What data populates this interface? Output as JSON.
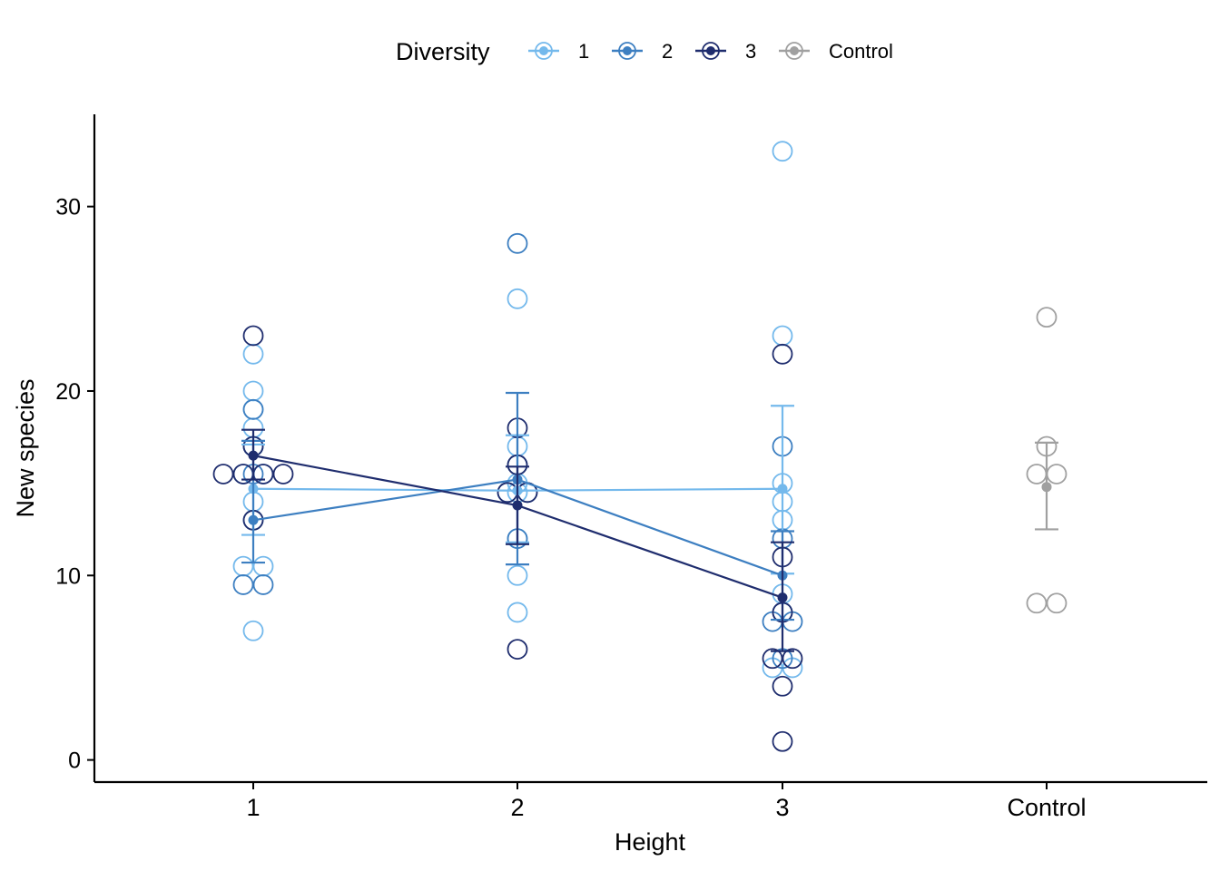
{
  "chart_data": {
    "type": "scatter",
    "xlabel": "Height",
    "ylabel": "New species",
    "categories": [
      "1",
      "2",
      "3",
      "Control"
    ],
    "ylim": [
      -1.2,
      35
    ],
    "yticks": [
      0,
      10,
      20,
      30
    ],
    "grid": false,
    "legend": {
      "title": "Diversity",
      "placement": "top",
      "entries": [
        "1",
        "2",
        "3",
        "Control"
      ]
    },
    "colors": {
      "d1": "#74b9ec",
      "d2": "#3d7fc1",
      "d3": "#1f2d6e",
      "control": "#a0a0a0"
    },
    "series": [
      {
        "name": "1",
        "color": "#74b9ec",
        "means": [
          14.7,
          14.6,
          14.7,
          null
        ],
        "err_low": [
          12.2,
          11.8,
          10.1,
          null
        ],
        "err_high": [
          17.1,
          17.6,
          19.2,
          null
        ],
        "points": [
          [
            1,
            22
          ],
          [
            1,
            20
          ],
          [
            1,
            19
          ],
          [
            1,
            18
          ],
          [
            1,
            17
          ],
          [
            1,
            15.5
          ],
          [
            1,
            15.5
          ],
          [
            1,
            14
          ],
          [
            1,
            10.5
          ],
          [
            1,
            10.5
          ],
          [
            1,
            7
          ],
          [
            2,
            25
          ],
          [
            2,
            17
          ],
          [
            2,
            15
          ],
          [
            2,
            14.5
          ],
          [
            2,
            12
          ],
          [
            2,
            10
          ],
          [
            2,
            8
          ],
          [
            3,
            33
          ],
          [
            3,
            23
          ],
          [
            3,
            15
          ],
          [
            3,
            14
          ],
          [
            3,
            13
          ],
          [
            3,
            9
          ],
          [
            3,
            5
          ],
          [
            3,
            5
          ]
        ]
      },
      {
        "name": "2",
        "color": "#3d7fc1",
        "means": [
          13.0,
          15.2,
          10.0,
          null
        ],
        "err_low": [
          10.7,
          10.6,
          7.6,
          null
        ],
        "err_high": [
          17.3,
          19.9,
          12.4,
          null
        ],
        "points": [
          [
            1,
            19
          ],
          [
            1,
            17
          ],
          [
            1,
            15.5
          ],
          [
            1,
            13
          ],
          [
            1,
            9.5
          ],
          [
            1,
            9.5
          ],
          [
            2,
            28
          ],
          [
            2,
            16
          ],
          [
            2,
            14.5
          ],
          [
            2,
            14.5
          ],
          [
            2,
            12
          ],
          [
            3,
            17
          ],
          [
            3,
            12
          ],
          [
            3,
            8
          ],
          [
            3,
            7.5
          ],
          [
            3,
            7.5
          ],
          [
            3,
            5.5
          ]
        ]
      },
      {
        "name": "3",
        "color": "#1f2d6e",
        "means": [
          16.5,
          13.8,
          8.8,
          null
        ],
        "err_low": [
          15.2,
          11.7,
          5.9,
          null
        ],
        "err_high": [
          17.9,
          15.9,
          11.8,
          null
        ],
        "points": [
          [
            1,
            23
          ],
          [
            1,
            17
          ],
          [
            1,
            15.5
          ],
          [
            1,
            15.5
          ],
          [
            1,
            15.5
          ],
          [
            1,
            15.5
          ],
          [
            1,
            13
          ],
          [
            2,
            18
          ],
          [
            2,
            16
          ],
          [
            2,
            14.5
          ],
          [
            2,
            14.5
          ],
          [
            2,
            6
          ],
          [
            3,
            22
          ],
          [
            3,
            11
          ],
          [
            3,
            8
          ],
          [
            3,
            5.5
          ],
          [
            3,
            5.5
          ],
          [
            3,
            4
          ],
          [
            3,
            1
          ]
        ]
      },
      {
        "name": "Control",
        "color": "#a0a0a0",
        "means": [
          null,
          null,
          null,
          14.8
        ],
        "err_low": [
          null,
          null,
          null,
          12.5
        ],
        "err_high": [
          null,
          null,
          null,
          17.2
        ],
        "points": [
          [
            4,
            24
          ],
          [
            4,
            17
          ],
          [
            4,
            15.5
          ],
          [
            4,
            15.5
          ],
          [
            4,
            8.5
          ],
          [
            4,
            8.5
          ]
        ]
      }
    ]
  }
}
